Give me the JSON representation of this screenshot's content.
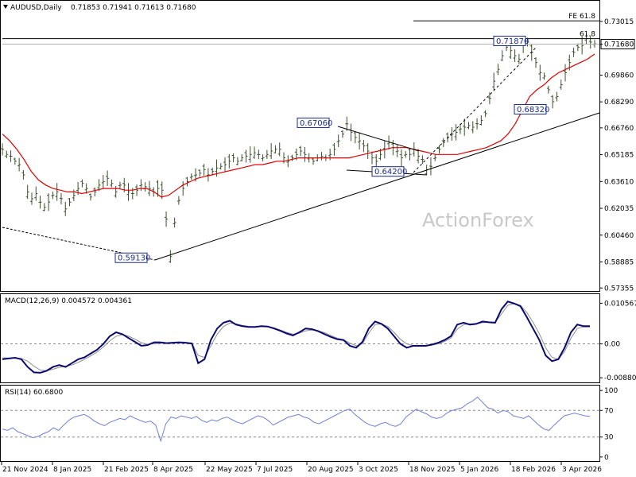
{
  "header": {
    "symbol": "AUDUSD,Daily",
    "ohlc": "0.71853 0.71941 0.71613 0.71680"
  },
  "watermark": "ActionForex",
  "colors": {
    "price": "#3a4f2a",
    "ma": "#e00000",
    "macd": "#0a0a6e",
    "signal": "#909090",
    "rsi": "#6f7fd6",
    "trend": "#000000"
  },
  "current_price": "0.71680",
  "chart_data": [
    {
      "type": "line",
      "panel": "price",
      "ylim": [
        0.5718,
        0.7418
      ],
      "yticks": [
        "0.73015",
        "0.71680",
        "0.69860",
        "0.68290",
        "0.66760",
        "0.65185",
        "0.63610",
        "0.62035",
        "0.60460",
        "0.58885",
        "0.57355"
      ],
      "xticks": [
        "21 Nov 2024",
        "8 Jan 2025",
        "21 Feb 2025",
        "8 Apr 2025",
        "22 May 2025",
        "7 Jul 2025",
        "20 Aug 2025",
        "3 Oct 2025",
        "18 Nov 2025",
        "5 Jan 2026",
        "18 Feb 2026",
        "3 Apr 2026"
      ],
      "annotations": [
        {
          "text": "0.59130",
          "x": "8 Apr 2025",
          "y": 0.5913
        },
        {
          "text": "0.67060",
          "x": "20 Aug 2025",
          "y": 0.6706
        },
        {
          "text": "0.64200",
          "x": "18 Nov 2025",
          "y": 0.642
        },
        {
          "text": "0.71870",
          "x": "5 Feb 2026",
          "y": 0.7187
        },
        {
          "text": "0.68320",
          "x": "13 Mar 2026",
          "y": 0.6832
        }
      ],
      "levels": [
        {
          "label": "FE 61.8",
          "y": 0.7305
        },
        {
          "label": "61.8",
          "y": 0.72
        }
      ],
      "series": [
        {
          "name": "",
          "values": [
            0.655,
            0.652,
            0.651,
            0.648,
            0.646,
            0.64,
            0.63,
            0.626,
            0.629,
            0.624,
            0.621,
            0.624,
            0.628,
            0.63,
            0.626,
            0.62,
            0.624,
            0.628,
            0.632,
            0.635,
            0.632,
            0.627,
            0.63,
            0.634,
            0.636,
            0.638,
            0.635,
            0.63,
            0.634,
            0.634,
            0.63,
            0.629,
            0.631,
            0.634,
            0.633,
            0.632,
            0.63,
            0.632,
            0.631,
            0.614,
            0.592,
            0.612,
            0.625,
            0.632,
            0.636,
            0.639,
            0.64,
            0.641,
            0.643,
            0.64,
            0.642,
            0.644,
            0.645,
            0.646,
            0.648,
            0.65,
            0.648,
            0.65,
            0.651,
            0.652,
            0.653,
            0.652,
            0.65,
            0.652,
            0.654,
            0.655,
            0.655,
            0.65,
            0.648,
            0.65,
            0.652,
            0.654,
            0.652,
            0.65,
            0.648,
            0.65,
            0.651,
            0.65,
            0.652,
            0.655,
            0.66,
            0.664,
            0.67,
            0.665,
            0.662,
            0.66,
            0.657,
            0.654,
            0.65,
            0.648,
            0.652,
            0.655,
            0.659,
            0.656,
            0.654,
            0.65,
            0.652,
            0.652,
            0.655,
            0.651,
            0.649,
            0.643,
            0.645,
            0.65,
            0.655,
            0.659,
            0.662,
            0.664,
            0.665,
            0.667,
            0.668,
            0.669,
            0.668,
            0.67,
            0.672,
            0.676,
            0.685,
            0.695,
            0.702,
            0.71,
            0.715,
            0.713,
            0.71,
            0.708,
            0.716,
            0.718,
            0.712,
            0.706,
            0.7,
            0.698,
            0.69,
            0.683,
            0.686,
            0.693,
            0.7,
            0.706,
            0.712,
            0.715,
            0.716,
            0.72,
            0.718,
            0.717
          ]
        },
        {
          "name": "",
          "values": [
            0.664,
            0.66,
            0.655,
            0.649,
            0.642,
            0.637,
            0.634,
            0.632,
            0.631,
            0.63,
            0.63,
            0.629,
            0.63,
            0.631,
            0.632,
            0.632,
            0.632,
            0.631,
            0.631,
            0.632,
            0.632,
            0.63,
            0.627,
            0.628,
            0.631,
            0.634,
            0.636,
            0.638,
            0.639,
            0.64,
            0.641,
            0.642,
            0.643,
            0.644,
            0.645,
            0.646,
            0.646,
            0.647,
            0.648,
            0.648,
            0.649,
            0.65,
            0.65,
            0.65,
            0.65,
            0.65,
            0.65,
            0.65,
            0.65,
            0.651,
            0.652,
            0.653,
            0.654,
            0.655,
            0.656,
            0.656,
            0.656,
            0.655,
            0.654,
            0.653,
            0.652,
            0.652,
            0.652,
            0.652,
            0.653,
            0.654,
            0.655,
            0.656,
            0.658,
            0.66,
            0.664,
            0.67,
            0.678,
            0.686,
            0.69,
            0.693,
            0.697,
            0.7,
            0.702,
            0.704,
            0.706,
            0.708,
            0.711
          ]
        }
      ]
    },
    {
      "type": "line",
      "panel": "macd",
      "title": "MACD(12,26,9) 0.004572 0.004361",
      "ylim": [
        -0.0098,
        0.0125
      ],
      "yticks": [
        "0.010567",
        "0.00",
        "-0.008808"
      ],
      "series": [
        {
          "name": "",
          "values": [
            -0.004,
            -0.0038,
            -0.0036,
            -0.004,
            -0.006,
            -0.0074,
            -0.0075,
            -0.007,
            -0.006,
            -0.0055,
            -0.006,
            -0.005,
            -0.004,
            -0.0035,
            -0.0025,
            -0.0015,
            0.0,
            0.002,
            0.003,
            0.0025,
            0.0015,
            0.0005,
            -0.0005,
            -0.0003,
            0.0004,
            0.0004,
            0.0002,
            0.0003,
            0.0004,
            0.0003,
            0.0001,
            -0.005,
            -0.004,
            0.001,
            0.004,
            0.0055,
            0.006,
            0.005,
            0.0046,
            0.0044,
            0.0044,
            0.0046,
            0.0045,
            0.004,
            0.0034,
            0.0027,
            0.0022,
            0.003,
            0.004,
            0.0038,
            0.0033,
            0.0025,
            0.0018,
            0.0012,
            0.001,
            -0.0005,
            -0.001,
            0.0005,
            0.004,
            0.0058,
            0.0052,
            0.004,
            0.002,
            0.0,
            -0.001,
            -0.0005,
            -0.0005,
            -0.0005,
            -0.0002,
            0.0003,
            0.001,
            0.002,
            0.005,
            0.0055,
            0.005,
            0.0052,
            0.0058,
            0.0056,
            0.0055,
            0.009,
            0.011,
            0.0105,
            0.0098,
            0.007,
            0.004,
            0.001,
            -0.003,
            -0.0045,
            -0.004,
            -0.001,
            0.003,
            0.005,
            0.0046,
            0.0046
          ]
        },
        {
          "name": "",
          "values": [
            -0.0036,
            -0.0037,
            -0.0037,
            -0.0038,
            -0.0045,
            -0.0058,
            -0.0068,
            -0.007,
            -0.0066,
            -0.0061,
            -0.0058,
            -0.0055,
            -0.0048,
            -0.004,
            -0.0031,
            -0.0021,
            -0.0008,
            0.0008,
            0.002,
            0.0024,
            0.002,
            0.0012,
            0.0003,
            -0.0001,
            0.0,
            0.0002,
            0.0002,
            0.0002,
            0.0003,
            0.0003,
            0.0002,
            -0.003,
            -0.0035,
            -0.0005,
            0.0025,
            0.0045,
            0.0054,
            0.0052,
            0.0048,
            0.0045,
            0.0044,
            0.0045,
            0.0045,
            0.0042,
            0.0036,
            0.003,
            0.0025,
            0.0028,
            0.0034,
            0.0036,
            0.0034,
            0.0029,
            0.0022,
            0.0015,
            0.0011,
            0.0002,
            -0.0005,
            0.0,
            0.0028,
            0.005,
            0.0052,
            0.0045,
            0.003,
            0.0012,
            0.0,
            -0.0004,
            -0.0005,
            -0.0005,
            -0.0003,
            0.0,
            0.0006,
            0.0015,
            0.0038,
            0.005,
            0.0052,
            0.0052,
            0.0055,
            0.0056,
            0.0056,
            0.0078,
            0.01,
            0.0104,
            0.01,
            0.0082,
            0.0056,
            0.0026,
            -0.001,
            -0.0035,
            -0.004,
            -0.002,
            0.0015,
            0.004,
            0.0044,
            0.0044
          ]
        }
      ]
    },
    {
      "type": "line",
      "panel": "rsi",
      "title": "RSI(14) 60.6800",
      "ylim": [
        -5,
        105
      ],
      "yticks": [
        "100",
        "70",
        "30",
        "0"
      ],
      "series": [
        {
          "name": "",
          "values": [
            42,
            40,
            44,
            38,
            35,
            32,
            29,
            31,
            35,
            38,
            44,
            40,
            48,
            55,
            60,
            62,
            64,
            60,
            54,
            50,
            47,
            52,
            55,
            58,
            56,
            62,
            58,
            55,
            52,
            54,
            48,
            24,
            50,
            60,
            58,
            62,
            60,
            58,
            61,
            55,
            52,
            56,
            54,
            58,
            60,
            56,
            52,
            50,
            54,
            58,
            62,
            60,
            55,
            48,
            52,
            56,
            60,
            62,
            64,
            60,
            58,
            52,
            50,
            54,
            58,
            62,
            66,
            70,
            72,
            64,
            58,
            52,
            48,
            46,
            50,
            52,
            48,
            46,
            50,
            60,
            66,
            72,
            68,
            65,
            60,
            58,
            60,
            66,
            70,
            72,
            74,
            80,
            84,
            90,
            82,
            74,
            72,
            66,
            70,
            68,
            62,
            60,
            58,
            62,
            55,
            48,
            42,
            40,
            48,
            55,
            62,
            64,
            66,
            64,
            62,
            61
          ]
        }
      ]
    }
  ]
}
